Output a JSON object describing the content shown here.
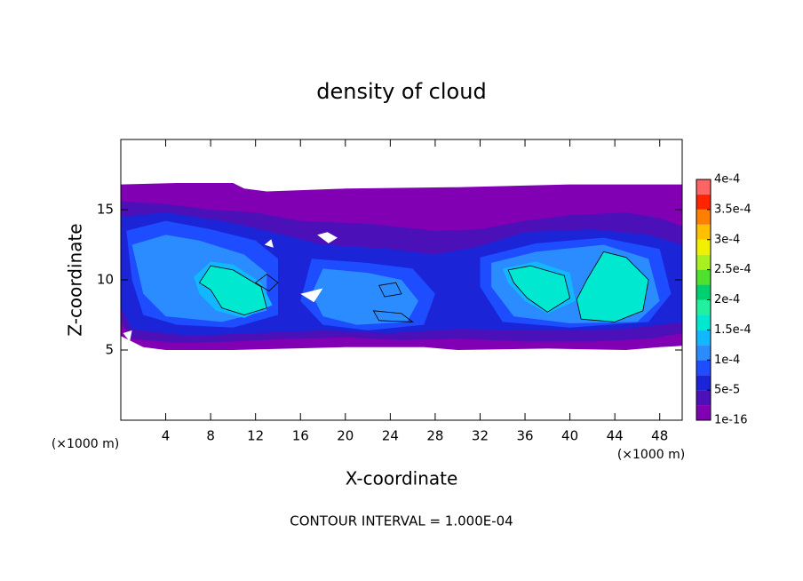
{
  "chart_data": {
    "type": "contourf",
    "title": "density of cloud",
    "x_label": "X-coordinate",
    "y_label": "Z-coordinate",
    "x_unit_label": "(×1000 m)",
    "y_unit_label": "(×1000 m)",
    "note": "CONTOUR INTERVAL = 1.000E-04",
    "xlim": [
      0,
      50
    ],
    "ylim": [
      0,
      20
    ],
    "xticks": [
      4,
      8,
      12,
      16,
      20,
      24,
      28,
      32,
      36,
      40,
      44,
      48
    ],
    "yticks": [
      5,
      10,
      15
    ],
    "colorbar": {
      "colors": [
        "#8200b4",
        "#4c10b8",
        "#1c24d8",
        "#1e4cff",
        "#2a8cff",
        "#12b8ff",
        "#00e8d0",
        "#22f0a0",
        "#00d070",
        "#50e030",
        "#a8f020",
        "#f0f000",
        "#ffc000",
        "#ff8000",
        "#ff2400",
        "#ff6464"
      ],
      "lim": [
        0,
        0.0004
      ],
      "ticks": [
        {
          "value": 1e-16,
          "label": "1e-16"
        },
        {
          "value": 5e-05,
          "label": "5e-5"
        },
        {
          "value": 0.0001,
          "label": "1e-4"
        },
        {
          "value": 0.00015,
          "label": "1.5e-4"
        },
        {
          "value": 0.0002,
          "label": "2e-4"
        },
        {
          "value": 0.00025,
          "label": "2.5e-4"
        },
        {
          "value": 0.0003,
          "label": "3e-4"
        },
        {
          "value": 0.00035,
          "label": "3.5e-4"
        },
        {
          "value": 0.0004,
          "label": "4e-4"
        }
      ]
    }
  }
}
